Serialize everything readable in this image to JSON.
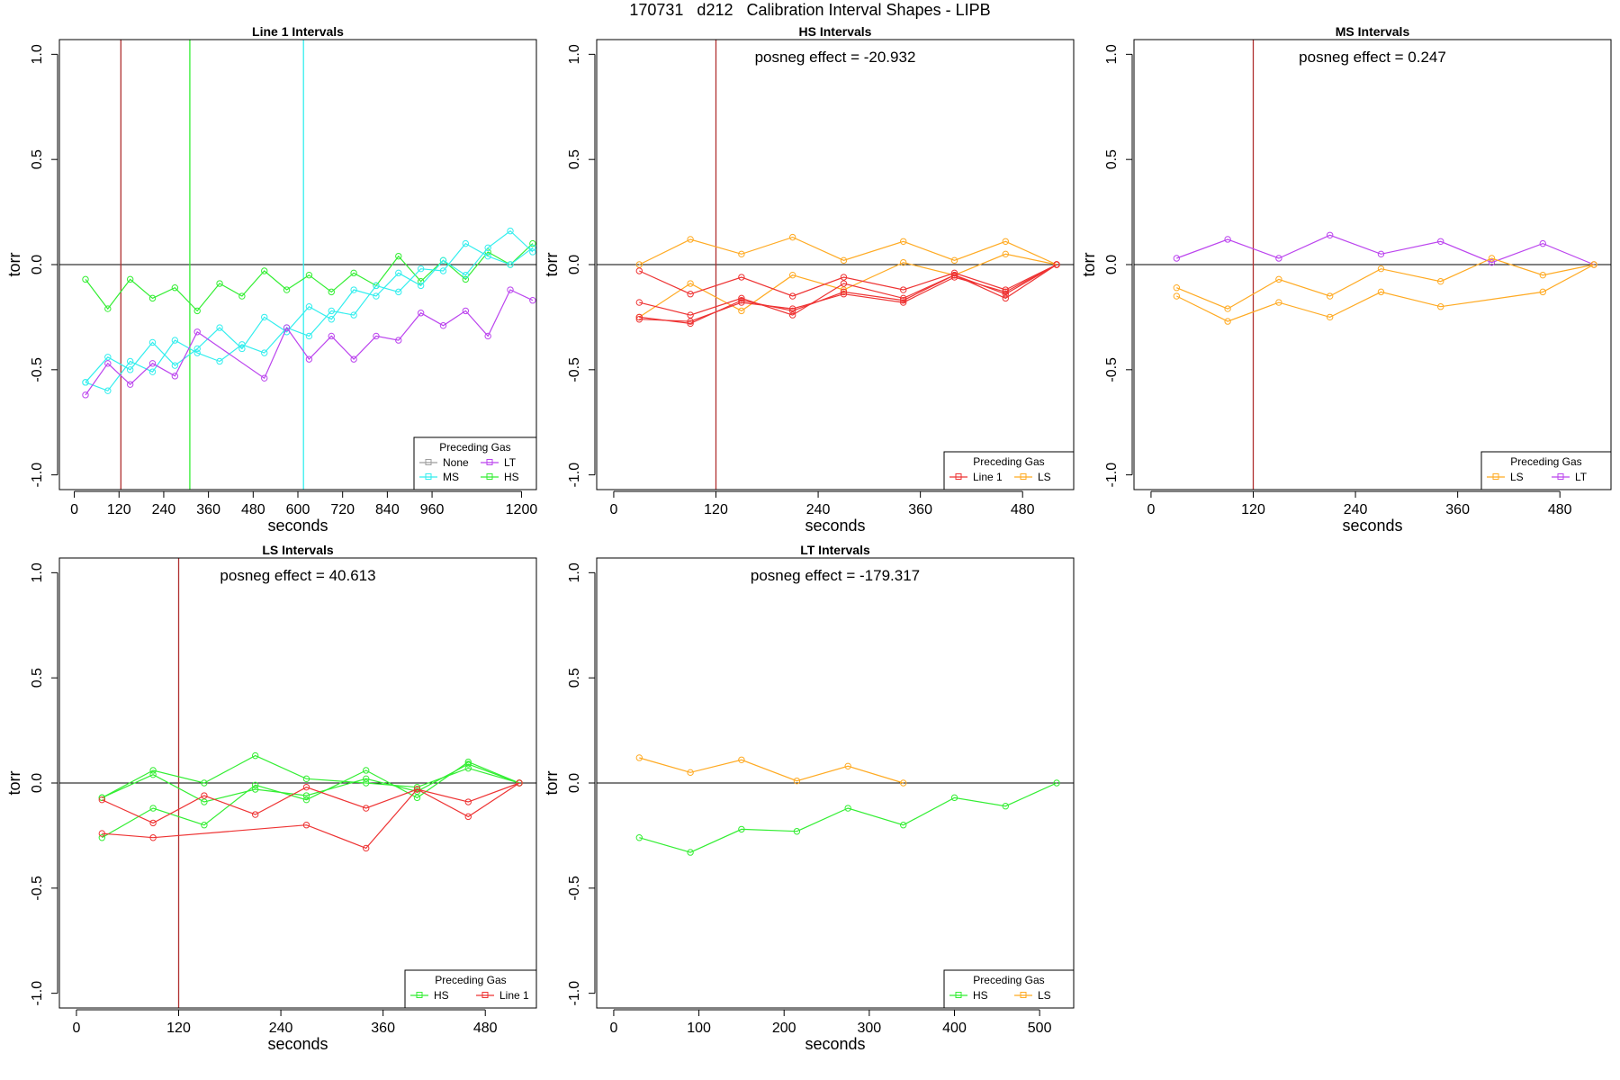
{
  "page": {
    "title": "170731   d212   Calibration Interval Shapes - LIPB"
  },
  "colors": {
    "None": "#9e9e9e",
    "MS": "#33eeee",
    "LT": "#bb44ee",
    "HS": "#33ee33",
    "Line 1": "#ee3333",
    "LS": "#ffaa22",
    "vline_120": "#b03030"
  },
  "chart_data": [
    {
      "type": "line",
      "title": "Line 1 Intervals",
      "xlabel": "seconds",
      "ylabel": "torr",
      "xlim": [
        -40,
        1240
      ],
      "ylim": [
        -1.07,
        1.07
      ],
      "xticks": [
        0,
        120,
        240,
        360,
        480,
        600,
        720,
        840,
        960,
        1200
      ],
      "xtick_labels": [
        "0",
        "120",
        "240",
        "360",
        "480",
        "600",
        "720",
        "840",
        "960",
        "1200"
      ],
      "yticks": [
        -1.0,
        -0.5,
        0.0,
        0.5,
        1.0
      ],
      "ytick_labels": [
        "-1.0",
        "-0.5",
        "0.0",
        "0.5",
        "1.0"
      ],
      "vlines": [
        {
          "x": 125,
          "color": "#b03030"
        },
        {
          "x": 310,
          "color": "#33ee33"
        },
        {
          "x": 615,
          "color": "#33eeee"
        }
      ],
      "annotation": "",
      "legend": {
        "title": "Preceding Gas",
        "position": "bottom-right",
        "columns": 2,
        "entries": [
          "None",
          "LT",
          "MS",
          "HS"
        ]
      },
      "series": [
        {
          "name": "HS",
          "color_key": "HS",
          "x": [
            30,
            90,
            150,
            210,
            270,
            330,
            390,
            450,
            510,
            570,
            630,
            690,
            750,
            810,
            870,
            930,
            990,
            1050,
            1110,
            1170,
            1230
          ],
          "y": [
            -0.07,
            -0.21,
            -0.07,
            -0.16,
            -0.11,
            -0.22,
            -0.09,
            -0.15,
            -0.03,
            -0.12,
            -0.05,
            -0.13,
            -0.04,
            -0.1,
            0.04,
            -0.08,
            0.02,
            -0.07,
            0.06,
            0.0,
            0.1
          ]
        },
        {
          "name": "MS",
          "color_key": "MS",
          "x": [
            30,
            90,
            150,
            210,
            270,
            330,
            390,
            450,
            510,
            570,
            630,
            690,
            750,
            810,
            870,
            930,
            990,
            1050,
            1110,
            1170,
            1230
          ],
          "y": [
            -0.56,
            -0.44,
            -0.5,
            -0.37,
            -0.48,
            -0.4,
            -0.3,
            -0.4,
            -0.25,
            -0.32,
            -0.2,
            -0.26,
            -0.12,
            -0.15,
            -0.04,
            -0.1,
            0.02,
            -0.05,
            0.08,
            0.16,
            0.06
          ]
        },
        {
          "name": "MS",
          "color_key": "MS",
          "x": [
            30,
            90,
            150,
            210,
            270,
            330,
            390,
            450,
            510,
            570,
            630,
            690,
            750,
            810,
            870,
            930,
            990,
            1050,
            1110,
            1170,
            1230
          ],
          "y": [
            -0.56,
            -0.6,
            -0.46,
            -0.51,
            -0.36,
            -0.42,
            -0.46,
            -0.38,
            -0.42,
            -0.3,
            -0.34,
            -0.22,
            -0.24,
            -0.1,
            -0.13,
            -0.02,
            -0.03,
            0.1,
            0.04,
            0.0,
            0.08
          ]
        },
        {
          "name": "LT",
          "color_key": "LT",
          "x": [
            30,
            90,
            150,
            210,
            270,
            330,
            510,
            570,
            630,
            690,
            750,
            810,
            870,
            930,
            990,
            1050,
            1110,
            1170,
            1230
          ],
          "y": [
            -0.62,
            -0.47,
            -0.57,
            -0.47,
            -0.53,
            -0.32,
            -0.54,
            -0.3,
            -0.45,
            -0.34,
            -0.45,
            -0.34,
            -0.36,
            -0.23,
            -0.29,
            -0.22,
            -0.34,
            -0.12,
            -0.17
          ]
        }
      ]
    },
    {
      "type": "line",
      "title": "HS Intervals",
      "xlabel": "seconds",
      "ylabel": "torr",
      "xlim": [
        -20,
        540
      ],
      "ylim": [
        -1.07,
        1.07
      ],
      "xticks": [
        0,
        120,
        240,
        360,
        480
      ],
      "xtick_labels": [
        "0",
        "120",
        "240",
        "360",
        "480"
      ],
      "yticks": [
        -1.0,
        -0.5,
        0.0,
        0.5,
        1.0
      ],
      "ytick_labels": [
        "-1.0",
        "-0.5",
        "0.0",
        "0.5",
        "1.0"
      ],
      "vlines": [
        {
          "x": 120,
          "color": "#b03030"
        }
      ],
      "annotation": "posneg effect = -20.932",
      "legend": {
        "title": "Preceding Gas",
        "position": "bottom-right",
        "columns": 2,
        "entries": [
          "Line 1",
          "LS"
        ]
      },
      "series": [
        {
          "name": "LS",
          "color_key": "LS",
          "x": [
            30,
            90,
            150,
            210,
            270,
            340,
            400,
            460,
            520
          ],
          "y": [
            0.0,
            0.12,
            0.05,
            0.13,
            0.02,
            0.11,
            0.02,
            0.11,
            0.0
          ]
        },
        {
          "name": "LS",
          "color_key": "LS",
          "x": [
            30,
            90,
            150,
            210,
            270,
            340,
            400,
            460,
            520
          ],
          "y": [
            -0.25,
            -0.09,
            -0.22,
            -0.05,
            -0.12,
            0.01,
            -0.05,
            0.05,
            0.0
          ]
        },
        {
          "name": "Line 1",
          "color_key": "Line 1",
          "x": [
            30,
            90,
            150,
            210,
            270,
            340,
            400,
            460,
            520
          ],
          "y": [
            -0.03,
            -0.14,
            -0.06,
            -0.15,
            -0.06,
            -0.12,
            -0.04,
            -0.12,
            0.0
          ]
        },
        {
          "name": "Line 1",
          "color_key": "Line 1",
          "x": [
            30,
            90,
            150,
            210,
            270,
            340,
            400,
            460,
            520
          ],
          "y": [
            -0.18,
            -0.24,
            -0.16,
            -0.24,
            -0.09,
            -0.16,
            -0.05,
            -0.14,
            0.0
          ]
        },
        {
          "name": "Line 1",
          "color_key": "Line 1",
          "x": [
            30,
            90,
            150,
            210,
            270,
            340,
            400,
            460,
            520
          ],
          "y": [
            -0.25,
            -0.28,
            -0.17,
            -0.22,
            -0.13,
            -0.17,
            -0.05,
            -0.16,
            0.0
          ]
        },
        {
          "name": "Line 1",
          "color_key": "Line 1",
          "x": [
            30,
            90,
            150,
            210,
            270,
            340,
            400,
            460,
            520
          ],
          "y": [
            -0.26,
            -0.27,
            -0.18,
            -0.21,
            -0.14,
            -0.18,
            -0.06,
            -0.13,
            0.0
          ]
        }
      ]
    },
    {
      "type": "line",
      "title": "MS Intervals",
      "xlabel": "seconds",
      "ylabel": "torr",
      "xlim": [
        -20,
        540
      ],
      "ylim": [
        -1.07,
        1.07
      ],
      "xticks": [
        0,
        120,
        240,
        360,
        480
      ],
      "xtick_labels": [
        "0",
        "120",
        "240",
        "360",
        "480"
      ],
      "yticks": [
        -1.0,
        -0.5,
        0.0,
        0.5,
        1.0
      ],
      "ytick_labels": [
        "-1.0",
        "-0.5",
        "0.0",
        "0.5",
        "1.0"
      ],
      "vlines": [
        {
          "x": 120,
          "color": "#b03030"
        }
      ],
      "annotation": "posneg effect = 0.247",
      "legend": {
        "title": "Preceding Gas",
        "position": "bottom-right",
        "columns": 2,
        "entries": [
          "LS",
          "LT"
        ]
      },
      "series": [
        {
          "name": "LT",
          "color_key": "LT",
          "x": [
            30,
            90,
            150,
            210,
            270,
            340,
            400,
            460,
            520
          ],
          "y": [
            0.03,
            0.12,
            0.03,
            0.14,
            0.05,
            0.11,
            0.01,
            0.1,
            0.0
          ]
        },
        {
          "name": "LS",
          "color_key": "LS",
          "x": [
            30,
            90,
            150,
            210,
            270,
            340,
            400,
            460,
            520
          ],
          "y": [
            -0.11,
            -0.21,
            -0.07,
            -0.15,
            -0.02,
            -0.08,
            0.03,
            -0.05,
            0.0
          ]
        },
        {
          "name": "LS",
          "color_key": "LS",
          "x": [
            30,
            90,
            150,
            210,
            270,
            340,
            460,
            520
          ],
          "y": [
            -0.15,
            -0.27,
            -0.18,
            -0.25,
            -0.13,
            -0.2,
            -0.13,
            0.0
          ]
        }
      ]
    },
    {
      "type": "line",
      "title": "LS Intervals",
      "xlabel": "seconds",
      "ylabel": "torr",
      "xlim": [
        -20,
        540
      ],
      "ylim": [
        -1.07,
        1.07
      ],
      "xticks": [
        0,
        120,
        240,
        360,
        480
      ],
      "xtick_labels": [
        "0",
        "120",
        "240",
        "360",
        "480"
      ],
      "yticks": [
        -1.0,
        -0.5,
        0.0,
        0.5,
        1.0
      ],
      "ytick_labels": [
        "-1.0",
        "-0.5",
        "0.0",
        "0.5",
        "1.0"
      ],
      "vlines": [
        {
          "x": 120,
          "color": "#b03030"
        }
      ],
      "annotation": "posneg effect = 40.613",
      "legend": {
        "title": "Preceding Gas",
        "position": "bottom-right",
        "columns": 2,
        "entries": [
          "HS",
          "Line 1"
        ]
      },
      "series": [
        {
          "name": "HS",
          "color_key": "HS",
          "x": [
            30,
            90,
            150,
            210,
            270,
            340,
            400,
            460,
            520
          ],
          "y": [
            -0.07,
            0.06,
            0.0,
            0.13,
            0.02,
            0.0,
            -0.02,
            0.07,
            0.0
          ]
        },
        {
          "name": "HS",
          "color_key": "HS",
          "x": [
            30,
            90,
            150,
            210,
            270,
            340,
            400,
            460,
            520
          ],
          "y": [
            -0.26,
            -0.12,
            -0.2,
            -0.01,
            -0.08,
            0.06,
            -0.07,
            0.1,
            0.0
          ]
        },
        {
          "name": "HS",
          "color_key": "HS",
          "x": [
            30,
            90,
            150,
            210,
            270,
            340,
            400,
            460,
            520
          ],
          "y": [
            -0.07,
            0.04,
            -0.09,
            -0.03,
            -0.06,
            0.02,
            -0.04,
            0.09,
            0.0
          ]
        },
        {
          "name": "Line 1",
          "color_key": "Line 1",
          "x": [
            30,
            90,
            150,
            210,
            270,
            340,
            400,
            460,
            520
          ],
          "y": [
            -0.08,
            -0.19,
            -0.06,
            -0.15,
            -0.02,
            -0.12,
            -0.03,
            -0.09,
            0.0
          ]
        },
        {
          "name": "Line 1",
          "color_key": "Line 1",
          "x": [
            30,
            90,
            270,
            340,
            400,
            460,
            520
          ],
          "y": [
            -0.24,
            -0.26,
            -0.2,
            -0.31,
            -0.03,
            -0.16,
            0.0
          ]
        }
      ]
    },
    {
      "type": "line",
      "title": "LT Intervals",
      "xlabel": "seconds",
      "ylabel": "torr",
      "xlim": [
        -20,
        540
      ],
      "ylim": [
        -1.07,
        1.07
      ],
      "xticks": [
        0,
        100,
        200,
        300,
        400,
        500
      ],
      "xtick_labels": [
        "0",
        "100",
        "200",
        "300",
        "400",
        "500"
      ],
      "yticks": [
        -1.0,
        -0.5,
        0.0,
        0.5,
        1.0
      ],
      "ytick_labels": [
        "-1.0",
        "-0.5",
        "0.0",
        "0.5",
        "1.0"
      ],
      "vlines": [],
      "annotation": "posneg effect = -179.317",
      "legend": {
        "title": "Preceding Gas",
        "position": "bottom-right",
        "columns": 2,
        "entries": [
          "HS",
          "LS"
        ]
      },
      "series": [
        {
          "name": "LS",
          "color_key": "LS",
          "x": [
            30,
            90,
            150,
            215,
            275,
            340
          ],
          "y": [
            0.12,
            0.05,
            0.11,
            0.01,
            0.08,
            0.0
          ]
        },
        {
          "name": "HS",
          "color_key": "HS",
          "x": [
            30,
            90,
            150,
            215,
            275,
            340,
            400,
            460,
            520
          ],
          "y": [
            -0.26,
            -0.33,
            -0.22,
            -0.23,
            -0.12,
            -0.2,
            -0.07,
            -0.11,
            0.0
          ]
        }
      ]
    }
  ]
}
